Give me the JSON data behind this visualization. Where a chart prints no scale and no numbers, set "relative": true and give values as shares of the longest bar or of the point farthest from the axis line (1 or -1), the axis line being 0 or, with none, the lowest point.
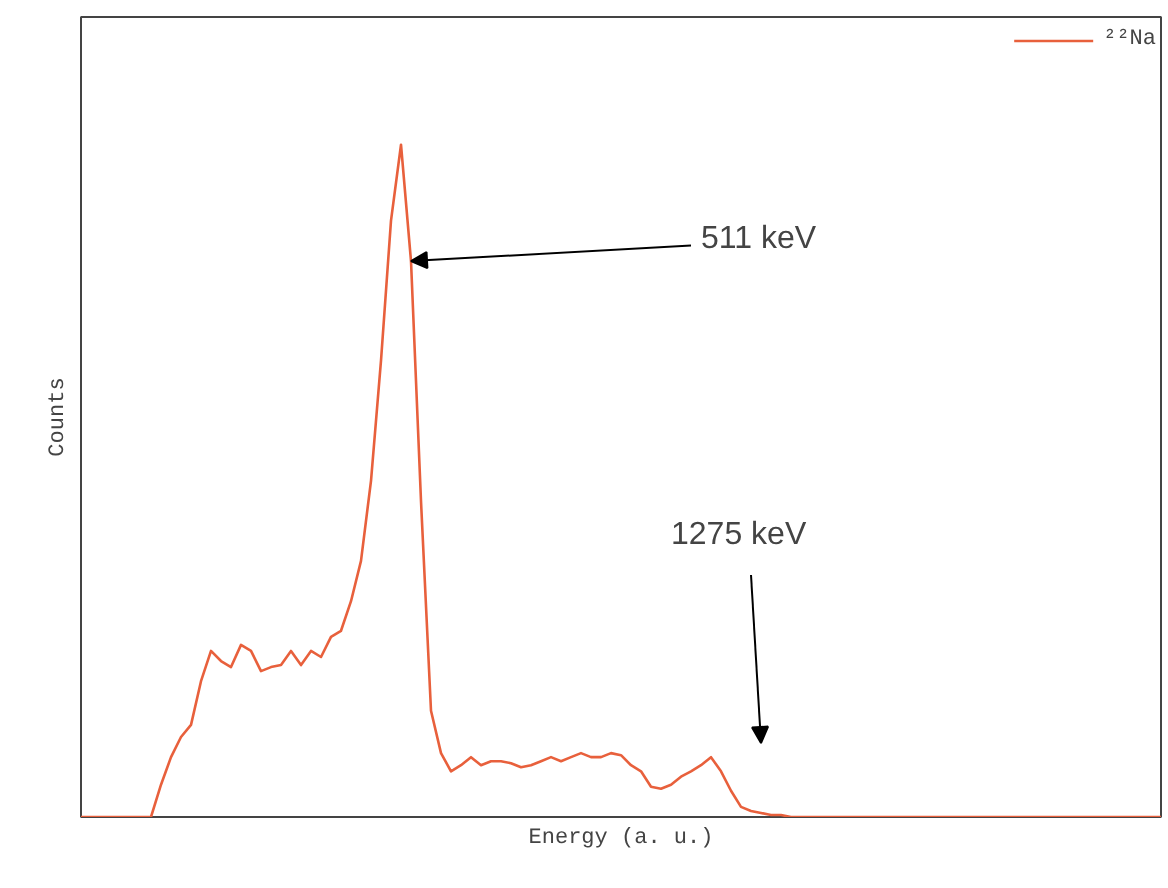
{
  "chart_data": {
    "type": "line",
    "relative": true,
    "xlabel": "Energy (a. u.)",
    "ylabel": "Counts",
    "legend": "top right",
    "categories": [
      null,
      null,
      null,
      null,
      null,
      null,
      null,
      null,
      null,
      null,
      null,
      null,
      null,
      null,
      null,
      null,
      null,
      null,
      null,
      null,
      null,
      null,
      null,
      null,
      null,
      null,
      null,
      null,
      null,
      null,
      null,
      null,
      null,
      null,
      null,
      null,
      null,
      null,
      null,
      null,
      null,
      null,
      null,
      null,
      null,
      null,
      null,
      null,
      null,
      null,
      null,
      null,
      null,
      null,
      null,
      null,
      null,
      null,
      null,
      null,
      null,
      null,
      null,
      null,
      null,
      null,
      null,
      null,
      null,
      null,
      null,
      null,
      null,
      null,
      null,
      null,
      null,
      null,
      null,
      null,
      null,
      null,
      null,
      null,
      null,
      null,
      null,
      null,
      null,
      null,
      null,
      null,
      null,
      null,
      null,
      null,
      null,
      null,
      null,
      null,
      null,
      null,
      null,
      null,
      null,
      null,
      null,
      null,
      null
    ],
    "series": [
      {
        "name": "²²Na",
        "color": "#e8603c",
        "values": [
          0,
          0,
          0,
          0,
          0,
          0,
          0,
          0,
          0.048,
          0.089,
          0.119,
          0.137,
          0.202,
          0.247,
          0.232,
          0.223,
          0.256,
          0.247,
          0.217,
          0.223,
          0.226,
          0.247,
          0.226,
          0.247,
          0.238,
          0.268,
          0.277,
          0.321,
          0.381,
          0.5,
          0.679,
          0.887,
          1,
          0.827,
          0.47,
          0.158,
          0.095,
          0.068,
          0.077,
          0.089,
          0.077,
          0.083,
          0.083,
          0.08,
          0.074,
          0.077,
          0.083,
          0.089,
          0.083,
          0.089,
          0.095,
          0.089,
          0.089,
          0.095,
          0.092,
          0.077,
          0.068,
          0.045,
          0.042,
          0.048,
          0.06,
          0.068,
          0.077,
          0.089,
          0.068,
          0.039,
          0.015,
          0.009,
          0.006,
          0.003,
          0.003,
          0,
          0,
          0,
          0,
          0,
          0,
          0,
          0,
          0,
          0,
          0,
          0,
          0,
          0,
          0,
          0,
          0,
          0,
          0,
          0,
          0,
          0,
          0,
          0,
          0,
          0,
          0,
          0,
          0,
          0,
          0,
          0,
          0,
          0,
          0,
          0,
          0,
          0
        ]
      }
    ],
    "annotations": [
      {
        "text": "511 keV"
      },
      {
        "text": "1275 keV"
      }
    ],
    "marker": "none",
    "line_style": "solid"
  }
}
